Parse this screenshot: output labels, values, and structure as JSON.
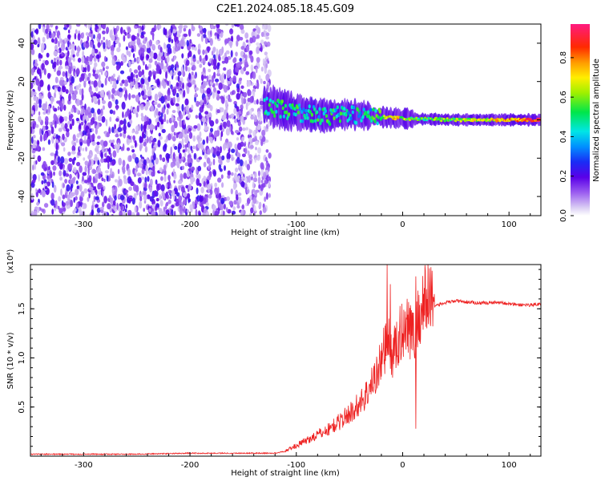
{
  "title": "C2E1.2024.085.18.45.G09",
  "chart_data": [
    {
      "type": "heatmap",
      "xlabel": "Height of straight line (km)",
      "ylabel": "Frequency (Hz)",
      "xlim": [
        -350,
        130
      ],
      "ylim": [
        -50,
        50
      ],
      "xticks": [
        -300,
        -200,
        -100,
        0,
        100
      ],
      "yticks": [
        -40,
        -20,
        0,
        20,
        40
      ],
      "colorbar": {
        "label": "Normalized spectral amplitude",
        "range": [
          0.0,
          0.97
        ],
        "ticks": [
          "0.0",
          "0.2",
          "0.4",
          "0.6",
          "0.8"
        ],
        "colormap": "rainbow (white-lavender-purple-blue-cyan-green-yellow-orange-red-pink)"
      },
      "signal_track": {
        "description": "coherent tone emerging from noise near -130 km and narrowing toward 0 Hz",
        "x": [
          -130,
          -110,
          -90,
          -70,
          -50,
          -30,
          -10,
          10,
          50,
          100,
          130
        ],
        "y": [
          8,
          5,
          3,
          2,
          3,
          2,
          1,
          0.5,
          0,
          0,
          0
        ],
        "amplitude": [
          0.45,
          0.5,
          0.45,
          0.5,
          0.45,
          0.45,
          0.75,
          0.55,
          0.6,
          0.75,
          0.9
        ]
      },
      "noise_region": {
        "x": [
          -350,
          -125
        ],
        "y": [
          -50,
          50
        ],
        "amplitude": [
          0.05,
          0.25
        ]
      }
    },
    {
      "type": "line",
      "xlabel": "Height of straight line (km)",
      "ylabel": "SNR (10 * v/v)",
      "y_multiplier": "(x10⁴)",
      "xlim": [
        -350,
        130
      ],
      "ylim": [
        0,
        1.95
      ],
      "xticks": [
        -300,
        -200,
        -100,
        0,
        100
      ],
      "yticks": [
        "0.5",
        "1.0",
        "1.5"
      ],
      "series": [
        {
          "color": "#ee2222",
          "x": [
            -350,
            -300,
            -250,
            -200,
            -150,
            -120,
            -110,
            -100,
            -90,
            -80,
            -70,
            -60,
            -50,
            -40,
            -30,
            -20,
            -15,
            -10,
            -5,
            0,
            5,
            10,
            15,
            20,
            30,
            40,
            50,
            60,
            70,
            80,
            90,
            100,
            110,
            120,
            130
          ],
          "y": [
            0.02,
            0.02,
            0.02,
            0.03,
            0.03,
            0.03,
            0.05,
            0.1,
            0.15,
            0.2,
            0.25,
            0.32,
            0.4,
            0.5,
            0.65,
            0.9,
            1.1,
            0.95,
            1.05,
            1.2,
            1.3,
            1.1,
            1.3,
            1.45,
            1.53,
            1.56,
            1.58,
            1.57,
            1.56,
            1.56,
            1.57,
            1.55,
            1.54,
            1.54,
            1.55
          ],
          "spikes": [
            [
              -15,
              1.95
            ],
            [
              -12,
              1.75
            ],
            [
              12,
              1.83
            ],
            [
              12,
              0.28
            ]
          ]
        }
      ]
    }
  ]
}
